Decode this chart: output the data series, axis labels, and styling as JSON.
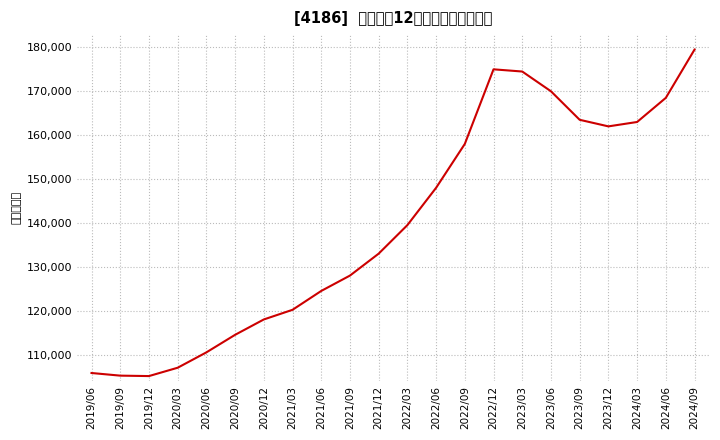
{
  "title": "[4186]  売上高の12か月移動合計の推移",
  "ylabel": "（百万円）",
  "line_color": "#cc0000",
  "background_color": "#ffffff",
  "plot_bg_color": "#ffffff",
  "grid_color": "#bbbbbb",
  "ylim": [
    104000,
    183000
  ],
  "yticks": [
    110000,
    120000,
    130000,
    140000,
    150000,
    160000,
    170000,
    180000
  ],
  "x_labels": [
    "2019/06",
    "2019/09",
    "2019/12",
    "2020/03",
    "2020/06",
    "2020/09",
    "2020/12",
    "2021/03",
    "2021/06",
    "2021/09",
    "2021/12",
    "2022/03",
    "2022/06",
    "2022/09",
    "2022/12",
    "2023/03",
    "2023/06",
    "2023/09",
    "2023/12",
    "2024/03",
    "2024/06",
    "2024/09"
  ],
  "values": [
    105800,
    105200,
    105100,
    107000,
    110500,
    114500,
    118000,
    120200,
    124500,
    128000,
    133000,
    139500,
    148000,
    158000,
    175000,
    174500,
    170000,
    163500,
    162000,
    163000,
    168500,
    179500
  ]
}
